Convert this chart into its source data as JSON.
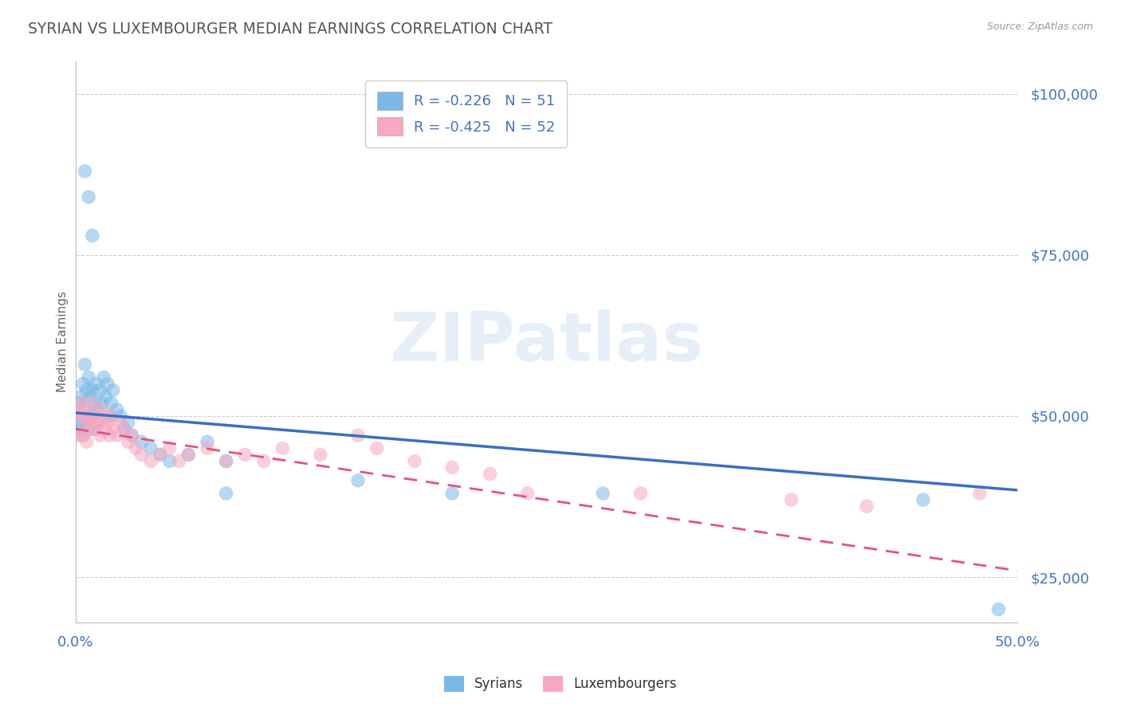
{
  "title": "SYRIAN VS LUXEMBOURGER MEDIAN EARNINGS CORRELATION CHART",
  "source": "Source: ZipAtlas.com",
  "ylabel": "Median Earnings",
  "yticks": [
    25000,
    50000,
    75000,
    100000
  ],
  "ytick_labels": [
    "$25,000",
    "$50,000",
    "$75,000",
    "$100,000"
  ],
  "xmin": 0.0,
  "xmax": 0.5,
  "ymin": 18000,
  "ymax": 105000,
  "watermark": "ZIPatlas",
  "legend_r1": "R = -0.226",
  "legend_n1": "N = 51",
  "legend_r2": "R = -0.425",
  "legend_n2": "N = 52",
  "syrian_color": "#7ab8e8",
  "luxembourger_color": "#f7a8c0",
  "trend_syrian_color": "#3a6fc4",
  "trend_luxembourger_color": "#e85080",
  "background_color": "#ffffff",
  "grid_color": "#cccccc",
  "title_color": "#555555",
  "axis_label_color": "#4472c4",
  "syrian_x": [
    0.001,
    0.002,
    0.002,
    0.003,
    0.003,
    0.004,
    0.004,
    0.005,
    0.005,
    0.006,
    0.006,
    0.007,
    0.007,
    0.008,
    0.008,
    0.009,
    0.009,
    0.01,
    0.01,
    0.011,
    0.012,
    0.013,
    0.013,
    0.014,
    0.015,
    0.016,
    0.017,
    0.018,
    0.019,
    0.02,
    0.022,
    0.024,
    0.026,
    0.028,
    0.03,
    0.035,
    0.04,
    0.045,
    0.05,
    0.06,
    0.07,
    0.08,
    0.005,
    0.007,
    0.009,
    0.08,
    0.15,
    0.2,
    0.28,
    0.45,
    0.49
  ],
  "syrian_y": [
    50000,
    52000,
    48000,
    53000,
    49000,
    55000,
    47000,
    58000,
    51000,
    54000,
    49000,
    56000,
    50000,
    53000,
    48000,
    54000,
    50000,
    52000,
    48000,
    55000,
    51000,
    49000,
    54000,
    52000,
    56000,
    53000,
    55000,
    50000,
    52000,
    54000,
    51000,
    50000,
    48000,
    49000,
    47000,
    46000,
    45000,
    44000,
    43000,
    44000,
    46000,
    43000,
    88000,
    84000,
    78000,
    38000,
    40000,
    38000,
    38000,
    37000,
    20000
  ],
  "lux_x": [
    0.001,
    0.002,
    0.002,
    0.003,
    0.004,
    0.004,
    0.005,
    0.006,
    0.006,
    0.007,
    0.008,
    0.009,
    0.009,
    0.01,
    0.011,
    0.012,
    0.013,
    0.014,
    0.015,
    0.016,
    0.017,
    0.018,
    0.019,
    0.02,
    0.022,
    0.024,
    0.026,
    0.028,
    0.03,
    0.032,
    0.035,
    0.04,
    0.045,
    0.05,
    0.055,
    0.06,
    0.07,
    0.08,
    0.09,
    0.1,
    0.11,
    0.13,
    0.15,
    0.16,
    0.18,
    0.2,
    0.22,
    0.24,
    0.3,
    0.38,
    0.42,
    0.48
  ],
  "lux_y": [
    51000,
    50000,
    47000,
    52000,
    50000,
    47000,
    51000,
    49000,
    46000,
    50000,
    48000,
    52000,
    49000,
    50000,
    48000,
    49000,
    47000,
    51000,
    50000,
    48000,
    49000,
    47000,
    50000,
    48000,
    47000,
    49000,
    48000,
    46000,
    47000,
    45000,
    44000,
    43000,
    44000,
    45000,
    43000,
    44000,
    45000,
    43000,
    44000,
    43000,
    45000,
    44000,
    47000,
    45000,
    43000,
    42000,
    41000,
    38000,
    38000,
    37000,
    36000,
    38000
  ]
}
